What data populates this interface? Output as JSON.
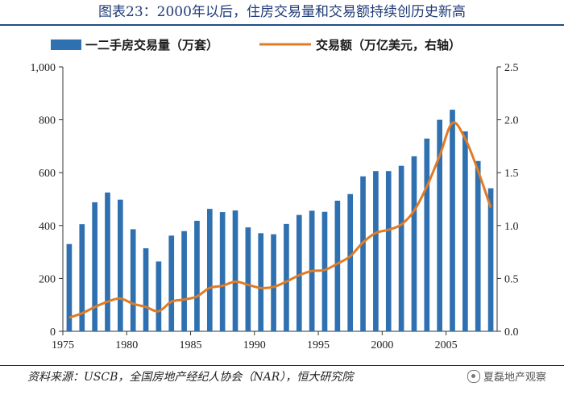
{
  "header": {
    "title": "图表23：2000年以后，住房交易量和交易额持续创历史新高"
  },
  "footer": {
    "source": "资料来源：USCB，全国房地产经纪人协会（NAR），恒大研究院",
    "watermark": "夏磊地产观察"
  },
  "chart_data": {
    "type": "bar",
    "title": "图表23：2000年以后，住房交易量和交易额持续创历史新高",
    "xlabel": "",
    "ylabel": "",
    "x": [
      1975,
      1976,
      1977,
      1978,
      1979,
      1980,
      1981,
      1982,
      1983,
      1984,
      1985,
      1986,
      1987,
      1988,
      1989,
      1990,
      1991,
      1992,
      1993,
      1994,
      1995,
      1996,
      1997,
      1998,
      1999,
      2000,
      2001,
      2002,
      2003,
      2004,
      2005,
      2006,
      2007,
      2008
    ],
    "x_ticks": [
      "1975",
      "1980",
      "1985",
      "1990",
      "1995",
      "2000",
      "2005"
    ],
    "ylim": [
      0,
      1000
    ],
    "y_ticks": [
      "0",
      "200",
      "400",
      "600",
      "800",
      "1,000"
    ],
    "y2lim": [
      0,
      2.5
    ],
    "y2_ticks": [
      "0.0",
      "0.5",
      "1.0",
      "1.5",
      "2.0",
      "2.5"
    ],
    "legend_position": "top",
    "grid": false,
    "colors": {
      "bar": "#2f70b0",
      "line": "#e07b26"
    },
    "series": [
      {
        "name": "一二手房交易量（万套）",
        "kind": "bar",
        "axis": "left",
        "values": [
          330,
          405,
          488,
          525,
          498,
          386,
          314,
          264,
          362,
          379,
          418,
          463,
          451,
          457,
          393,
          371,
          367,
          406,
          440,
          456,
          452,
          494,
          519,
          586,
          606,
          606,
          626,
          662,
          729,
          800,
          838,
          756,
          644,
          541
        ]
      },
      {
        "name": "交易额（万亿美元，右轴）",
        "kind": "line",
        "axis": "right",
        "values": [
          0.13,
          0.17,
          0.23,
          0.28,
          0.31,
          0.26,
          0.23,
          0.19,
          0.28,
          0.3,
          0.33,
          0.41,
          0.43,
          0.47,
          0.44,
          0.41,
          0.42,
          0.47,
          0.53,
          0.57,
          0.58,
          0.64,
          0.71,
          0.84,
          0.93,
          0.96,
          1.01,
          1.14,
          1.37,
          1.66,
          1.97,
          1.82,
          1.52,
          1.17
        ]
      }
    ]
  }
}
